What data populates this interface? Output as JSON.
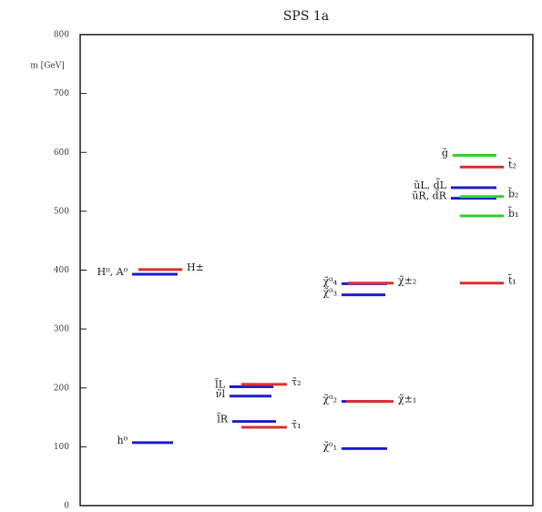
{
  "chart_data": {
    "type": "levels",
    "title": "SPS 1a",
    "y_label": "m [GeV]",
    "ylim": [
      0,
      800
    ],
    "yticks": [
      0,
      100,
      200,
      300,
      400,
      500,
      600,
      700,
      800
    ],
    "series": [
      {
        "labels": [
          "h⁰",
          "H⁰, A⁰",
          "H±"
        ],
        "values": [
          107,
          393,
          401
        ],
        "colors": [
          "#1f1fd0",
          "#1f1fd0",
          "#e03030"
        ]
      },
      {
        "labels": [
          "l̃R",
          "τ̃₁",
          "l̃L",
          "ν̃l",
          "τ̃₂"
        ],
        "values": [
          143,
          133,
          202,
          186,
          206
        ],
        "colors": [
          "#1f1fd0",
          "#e03030",
          "#1f1fd0",
          "#1f1fd0",
          "#e03030"
        ]
      },
      {
        "labels": [
          "χ̃⁰₁",
          "χ̃⁰₂",
          "χ̃±₁",
          "χ̃⁰₃",
          "χ̃⁰₄",
          "χ̃±₂"
        ],
        "values": [
          97,
          177,
          177,
          358,
          377,
          378
        ],
        "colors": [
          "#1f1fd0",
          "#1f1fd0",
          "#e03030",
          "#1f1fd0",
          "#1f1fd0",
          "#e03030"
        ]
      },
      {
        "labels": [
          "g̃",
          "t̃₂",
          "ũL, d̃L",
          "ũR, d̃R",
          "b̃₂",
          "b̃₁",
          "t̃₁"
        ],
        "values": [
          595,
          575,
          540,
          522,
          525,
          492,
          378
        ],
        "colors": [
          "#30d030",
          "#e03030",
          "#1f1fd0",
          "#1f1fd0",
          "#30d030",
          "#30d030",
          "#e03030"
        ]
      }
    ]
  }
}
